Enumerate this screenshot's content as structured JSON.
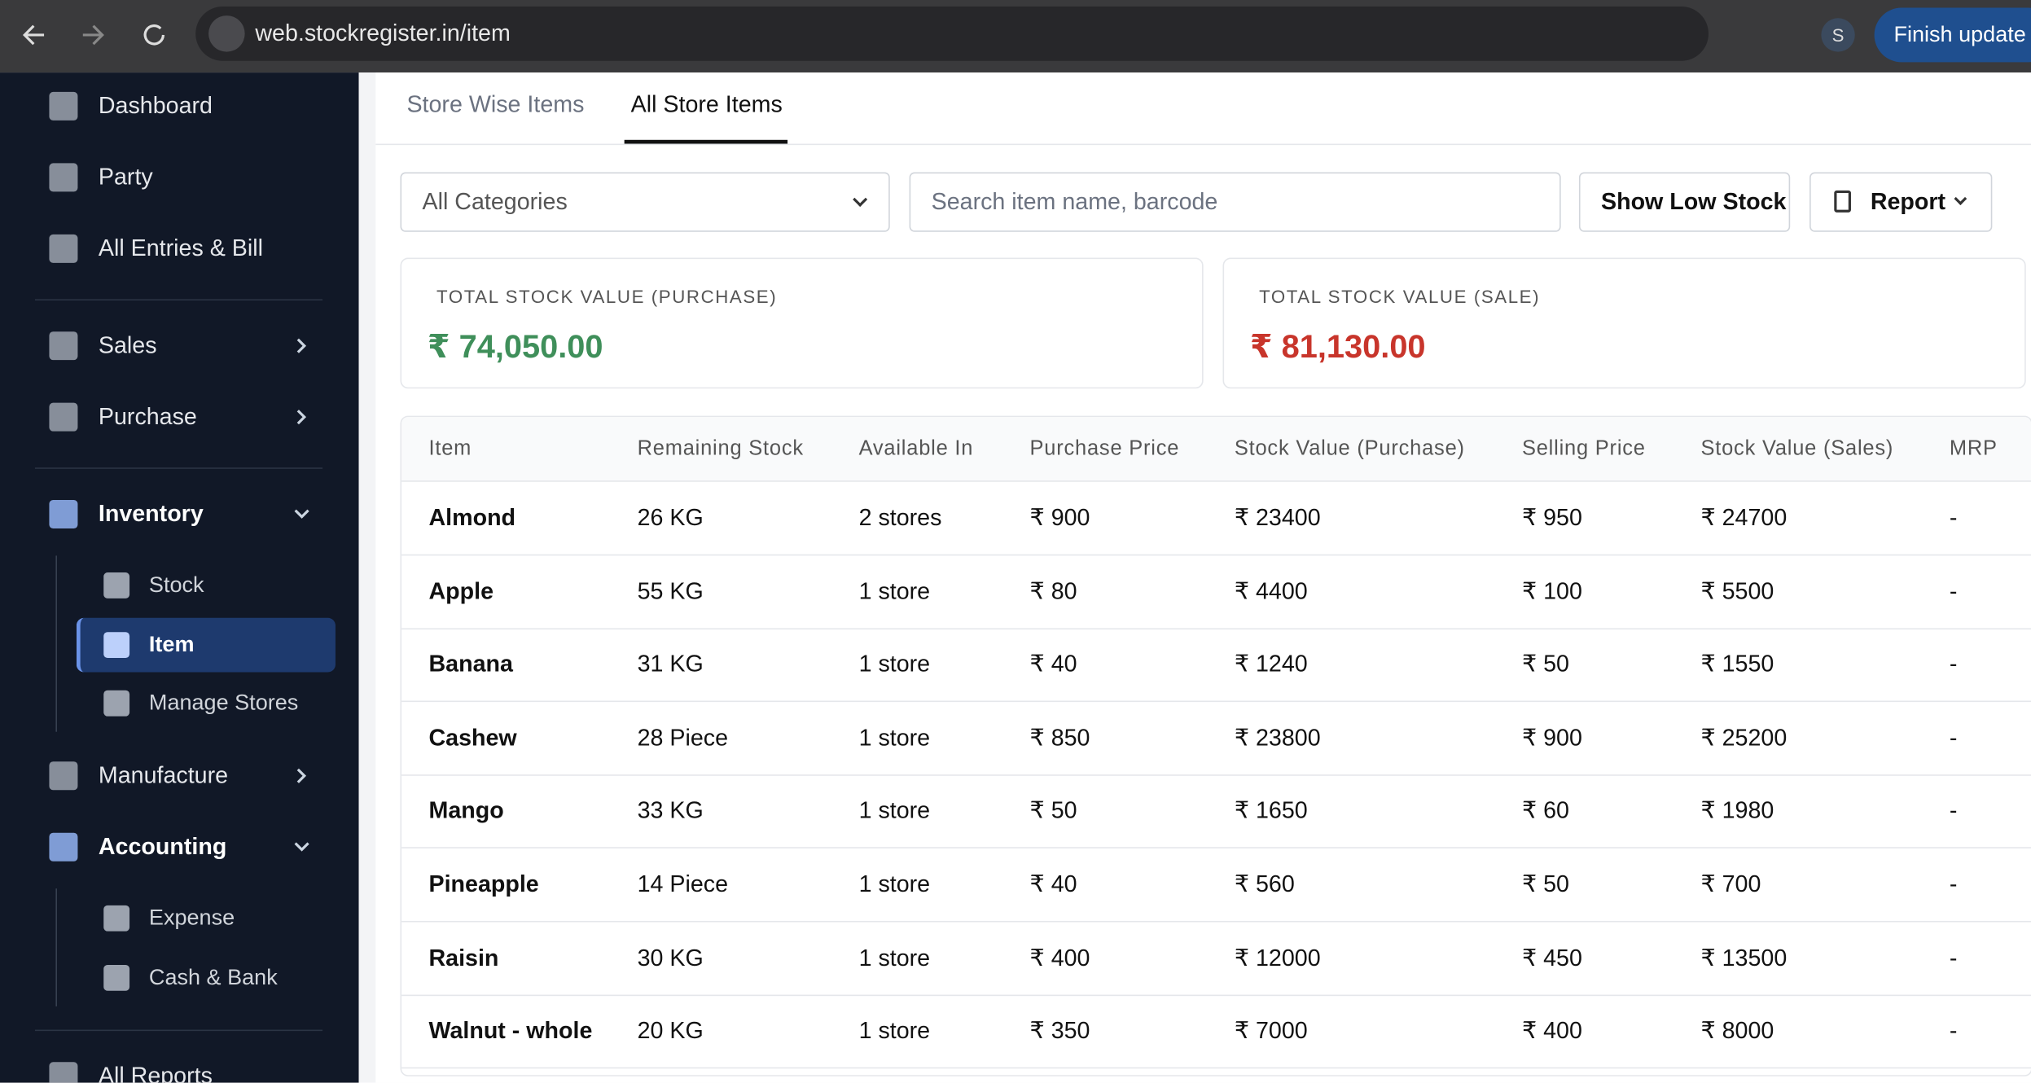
{
  "browser": {
    "url": "web.stockregister.in/item",
    "profile": "S",
    "update_button": "Finish update"
  },
  "sidebar": {
    "sections": [
      {
        "items": [
          {
            "label": "Dashboard"
          },
          {
            "label": "Party"
          },
          {
            "label": "All Entries & Bill"
          }
        ]
      },
      {
        "items": [
          {
            "label": "Sales",
            "submenu": true
          },
          {
            "label": "Purchase",
            "submenu": true
          }
        ]
      },
      {
        "items": [
          {
            "label": "Inventory",
            "children": [
              "Stock",
              "Item",
              "Manage Stores"
            ]
          },
          {
            "label": "Manufacture",
            "submenu": true
          },
          {
            "label": "Accounting",
            "children": [
              "Expense",
              "Cash & Bank"
            ]
          }
        ]
      },
      {
        "items": [
          {
            "label": "All Reports"
          }
        ]
      }
    ]
  },
  "tabs": [
    "Store Wise Items",
    "All Store Items"
  ],
  "filters": {
    "category": "All Categories",
    "search_placeholder": "Search item name, barcode",
    "low_stock_button": "Show Low Stock",
    "report_button": "Report"
  },
  "summary": [
    {
      "label": "TOTAL STOCK VALUE (PURCHASE)",
      "value": "₹ 74,050.00",
      "color": "#3f8f5a"
    },
    {
      "label": "TOTAL STOCK VALUE (SALE)",
      "value": "₹ 81,130.00",
      "color": "#c8352b"
    }
  ],
  "table": {
    "columns": [
      "Item",
      "Remaining Stock",
      "Available In",
      "Purchase Price",
      "Stock Value (Purchase)",
      "Selling Price",
      "Stock Value (Sales)",
      "MRP"
    ],
    "rows": [
      [
        "Almond",
        "26 KG",
        "2 stores",
        "₹ 900",
        "₹ 23400",
        "₹ 950",
        "₹ 24700",
        "-"
      ],
      [
        "Apple",
        "55 KG",
        "1 store",
        "₹ 80",
        "₹ 4400",
        "₹ 100",
        "₹ 5500",
        "-"
      ],
      [
        "Banana",
        "31 KG",
        "1 store",
        "₹ 40",
        "₹ 1240",
        "₹ 50",
        "₹ 1550",
        "-"
      ],
      [
        "Cashew",
        "28 Piece",
        "1 store",
        "₹ 850",
        "₹ 23800",
        "₹ 900",
        "₹ 25200",
        "-"
      ],
      [
        "Mango",
        "33 KG",
        "1 store",
        "₹ 50",
        "₹ 1650",
        "₹ 60",
        "₹ 1980",
        "-"
      ],
      [
        "Pineapple",
        "14 Piece",
        "1 store",
        "₹ 40",
        "₹ 560",
        "₹ 50",
        "₹ 700",
        "-"
      ],
      [
        "Raisin",
        "30 KG",
        "1 store",
        "₹ 400",
        "₹ 12000",
        "₹ 450",
        "₹ 13500",
        "-"
      ],
      [
        "Walnut - whole",
        "20 KG",
        "1 store",
        "₹ 350",
        "₹ 7000",
        "₹ 400",
        "₹ 8000",
        "-"
      ]
    ]
  }
}
